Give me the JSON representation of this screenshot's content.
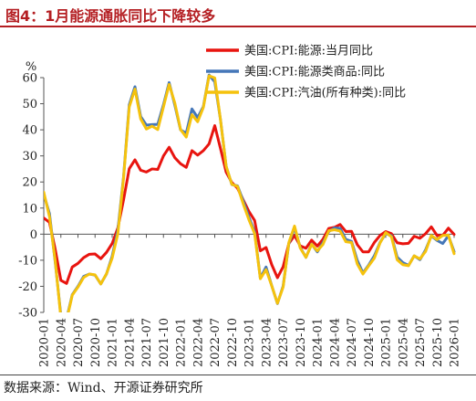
{
  "header": {
    "title": "图4：1月能源通胀同比下降较多"
  },
  "footer": {
    "source": "数据来源：Wind、开源证券研究所"
  },
  "colors": {
    "title": "#b41e22",
    "energy": "#e8140f",
    "energy_goods": "#4577b8",
    "gasoline": "#f5c20d"
  },
  "chart_data": {
    "type": "line",
    "ylabel": "%",
    "ylim": [
      -30,
      60
    ],
    "yticks": [
      -30,
      -20,
      -10,
      0,
      10,
      20,
      30,
      40,
      50,
      60
    ],
    "x_start": "2020-01",
    "x_end": "2026-01",
    "xtick_labels": [
      "2020-01",
      "2020-04",
      "2020-07",
      "2020-10",
      "2021-01",
      "2021-04",
      "2021-07",
      "2021-10",
      "2022-01",
      "2022-04",
      "2022-07",
      "2022-10",
      "2023-01",
      "2023-04",
      "2023-07",
      "2023-10",
      "2024-01",
      "2024-04",
      "2024-07",
      "2024-10",
      "2025-01",
      "2025-04",
      "2025-07",
      "2025-10",
      "2026-01"
    ],
    "legend_position": "top-right",
    "grid": false,
    "series": [
      {
        "name": "美国:CPI:能源:当月同比",
        "color": "#e8140f",
        "values": [
          6.2,
          4.5,
          -5.7,
          -17.7,
          -18.9,
          -12.6,
          -11.2,
          -9.0,
          -7.7,
          -7.6,
          -9.4,
          -7.0,
          -3.6,
          2.4,
          13.2,
          25.1,
          28.5,
          24.5,
          23.8,
          25.0,
          24.8,
          30.0,
          33.3,
          29.3,
          27.0,
          25.6,
          32.0,
          30.3,
          32.0,
          34.6,
          41.6,
          32.9,
          23.8,
          19.8,
          17.6,
          13.1,
          8.7,
          5.2,
          -6.4,
          -5.1,
          -11.7,
          -16.7,
          -12.5,
          -3.6,
          -0.5,
          -4.5,
          -5.4,
          -2.3,
          -4.6,
          -1.9,
          2.2,
          2.6,
          3.7,
          1.0,
          1.1,
          -4.0,
          -6.8,
          -6.8,
          -3.2,
          -0.5,
          1.0,
          0.2,
          -3.3,
          -3.7,
          -3.5,
          -0.8,
          -1.6,
          0.2,
          2.8,
          -0.5,
          -0.5,
          2.3,
          -0.1
        ]
      },
      {
        "name": "美国:CPI:能源类商品:同比",
        "color": "#4577b8",
        "values": [
          15.3,
          7.9,
          -10.5,
          -31.2,
          -32.5,
          -23.2,
          -20.0,
          -16.2,
          -15.3,
          -15.7,
          -19.1,
          -15.3,
          -8.5,
          1.5,
          22.0,
          49.6,
          56.5,
          45.1,
          41.8,
          42.0,
          42.1,
          49.6,
          58.1,
          49.4,
          40.0,
          38.7,
          48.0,
          44.7,
          48.9,
          61.0,
          58.4,
          44.0,
          26.0,
          19.0,
          18.5,
          12.7,
          6.5,
          0.8,
          -16.9,
          -12.6,
          -19.8,
          -26.6,
          -19.9,
          -3.6,
          2.5,
          -5.1,
          -8.9,
          -3.8,
          -6.8,
          -3.2,
          1.0,
          2.4,
          2.2,
          -2.0,
          -2.8,
          -10.0,
          -14.9,
          -11.9,
          -8.3,
          -3.2,
          0.2,
          -0.6,
          -8.8,
          -10.9,
          -12.0,
          -8.3,
          -9.8,
          -6.0,
          -0.7,
          -2.4,
          -3.6,
          -0.6,
          -6.7
        ]
      },
      {
        "name": "美国:CPI:汽油(所有种类):同比",
        "color": "#f5c20d",
        "values": [
          16.1,
          6.7,
          -10.0,
          -32.0,
          -33.1,
          -23.4,
          -20.3,
          -16.6,
          -15.3,
          -15.6,
          -19.1,
          -15.2,
          -9.2,
          0.2,
          21.6,
          48.8,
          55.6,
          44.2,
          40.3,
          41.4,
          40.1,
          48.8,
          57.4,
          50.2,
          40.1,
          37.2,
          45.8,
          43.1,
          48.6,
          60.7,
          59.9,
          44.0,
          26.0,
          19.1,
          18.3,
          11.6,
          5.5,
          0.2,
          -17.1,
          -13.6,
          -19.8,
          -26.5,
          -20.3,
          -3.2,
          3.1,
          -5.3,
          -8.9,
          -3.9,
          -6.4,
          -3.9,
          1.3,
          1.7,
          1.2,
          -2.9,
          -3.2,
          -11.4,
          -15.3,
          -12.2,
          -9.2,
          -3.4,
          0.6,
          -1.0,
          -9.8,
          -11.7,
          -12.1,
          -8.3,
          -9.5,
          -6.6,
          -0.5,
          -2.1,
          -0.5,
          -0.4,
          -7.5
        ]
      }
    ]
  }
}
